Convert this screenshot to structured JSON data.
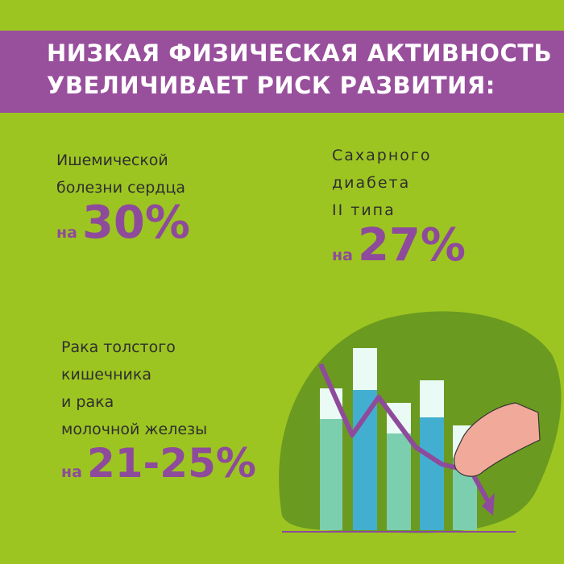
{
  "header": {
    "title": [
      "НИЗКАЯ ФИЗИЧЕСКАЯ АКТИВНОСТЬ",
      "УВЕЛИЧИВАЕТ РИСК РАЗВИТИЯ:"
    ]
  },
  "stats": [
    {
      "label": [
        "Ишемической",
        "болезни сердца"
      ],
      "prefix": "на",
      "value": "30%"
    },
    {
      "label": [
        "Сахарного",
        "диабета",
        "II типа"
      ],
      "prefix": "на",
      "value": "27%"
    },
    {
      "label": [
        "Рака толстого",
        "кишечника",
        "и рака",
        "молочной железы"
      ],
      "prefix": "на",
      "value": "21-25%"
    }
  ]
}
